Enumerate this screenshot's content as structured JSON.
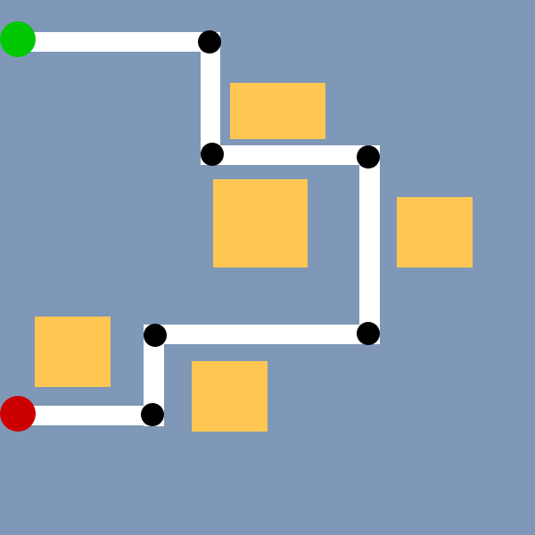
{
  "colors": {
    "background": "#7f98b8",
    "path": "#ffffff",
    "waypoint": "#000000",
    "start": "#00c800",
    "end": "#cc0000",
    "obstacle": "#ffc752"
  },
  "path": {
    "start_marker": "green-circle",
    "end_marker": "red-circle",
    "waypoint_count": 6
  }
}
